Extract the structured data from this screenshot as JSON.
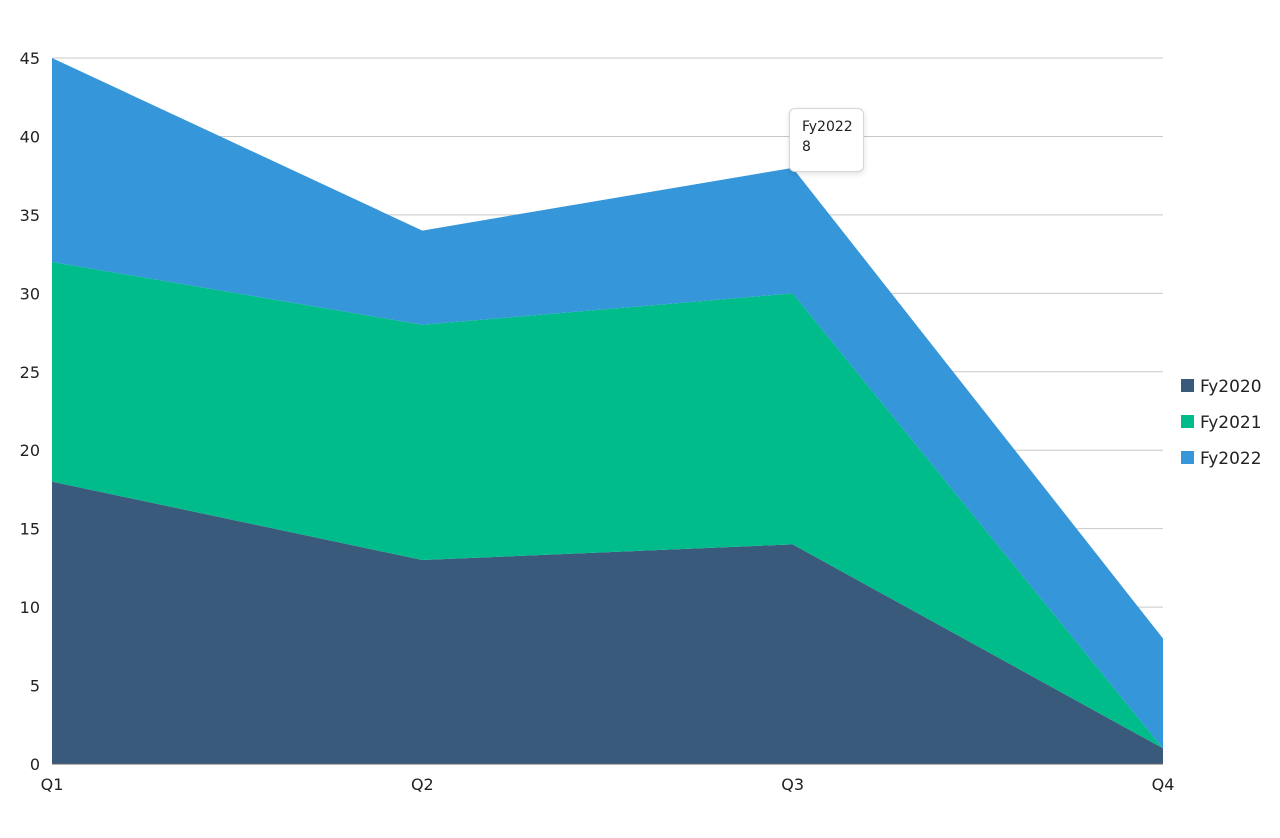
{
  "chart_data": {
    "type": "area",
    "stacked": true,
    "categories": [
      "Q1",
      "Q2",
      "Q3",
      "Q4"
    ],
    "series": [
      {
        "name": "Fy2020",
        "values": [
          18,
          13,
          14,
          1
        ],
        "color": "#3a5a7c"
      },
      {
        "name": "Fy2021",
        "values": [
          14,
          15,
          16,
          0
        ],
        "color": "#00bc8b"
      },
      {
        "name": "Fy2022",
        "values": [
          13,
          6,
          8,
          7
        ],
        "color": "#3596d9"
      }
    ],
    "yticks": [
      "0",
      "5",
      "10",
      "15",
      "20",
      "25",
      "30",
      "35",
      "40",
      "45"
    ],
    "ylim": [
      0,
      45
    ],
    "grid": true,
    "legend_position": "right"
  },
  "tooltip": {
    "series": "Fy2022",
    "value": "8"
  }
}
